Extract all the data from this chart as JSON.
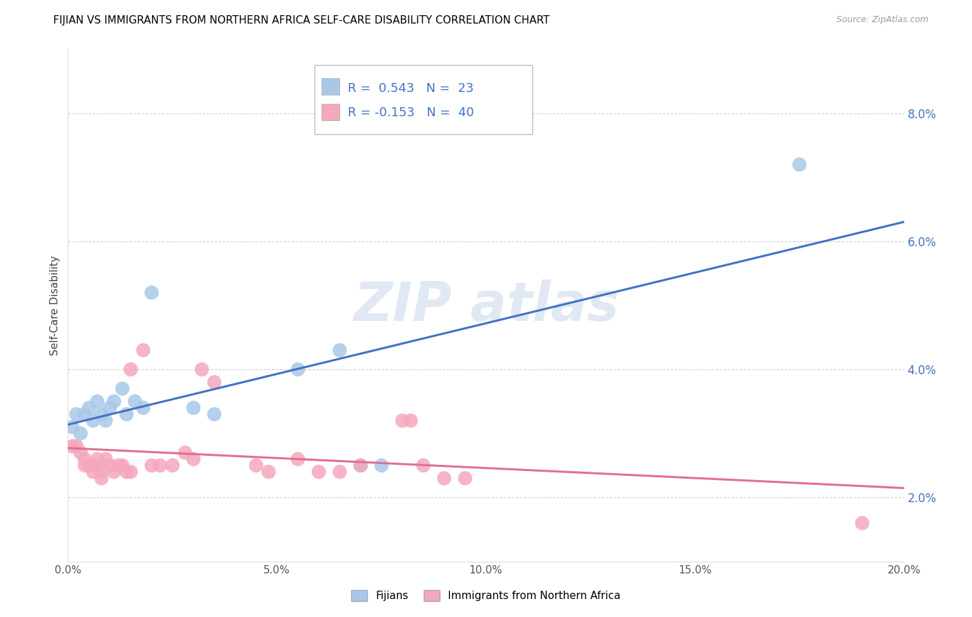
{
  "title": "FIJIAN VS IMMIGRANTS FROM NORTHERN AFRICA SELF-CARE DISABILITY CORRELATION CHART",
  "source": "Source: ZipAtlas.com",
  "ylabel": "Self-Care Disability",
  "xlim": [
    0.0,
    0.2
  ],
  "ylim": [
    0.01,
    0.09
  ],
  "yticks": [
    0.02,
    0.04,
    0.06,
    0.08
  ],
  "ytick_labels": [
    "2.0%",
    "4.0%",
    "6.0%",
    "8.0%"
  ],
  "xticks": [
    0.0,
    0.05,
    0.1,
    0.15,
    0.2
  ],
  "xtick_labels": [
    "0.0%",
    "5.0%",
    "10.0%",
    "15.0%",
    "20.0%"
  ],
  "fijian_color": "#a8c8e8",
  "immigrant_color": "#f4a8bc",
  "fijian_R": 0.543,
  "fijian_N": 23,
  "immigrant_R": -0.153,
  "immigrant_N": 40,
  "fijian_line_color": "#4472c4",
  "immigrant_line_color": "#e07090",
  "legend_label_1": "Fijians",
  "legend_label_2": "Immigrants from Northern Africa",
  "fijian_points": [
    [
      0.001,
      0.031
    ],
    [
      0.002,
      0.033
    ],
    [
      0.003,
      0.03
    ],
    [
      0.004,
      0.033
    ],
    [
      0.005,
      0.034
    ],
    [
      0.006,
      0.032
    ],
    [
      0.007,
      0.035
    ],
    [
      0.008,
      0.033
    ],
    [
      0.009,
      0.032
    ],
    [
      0.01,
      0.034
    ],
    [
      0.011,
      0.035
    ],
    [
      0.013,
      0.037
    ],
    [
      0.014,
      0.033
    ],
    [
      0.016,
      0.035
    ],
    [
      0.018,
      0.034
    ],
    [
      0.02,
      0.052
    ],
    [
      0.03,
      0.034
    ],
    [
      0.035,
      0.033
    ],
    [
      0.055,
      0.04
    ],
    [
      0.065,
      0.043
    ],
    [
      0.07,
      0.025
    ],
    [
      0.075,
      0.025
    ],
    [
      0.175,
      0.072
    ]
  ],
  "immigrant_points": [
    [
      0.001,
      0.028
    ],
    [
      0.002,
      0.028
    ],
    [
      0.003,
      0.027
    ],
    [
      0.004,
      0.026
    ],
    [
      0.004,
      0.025
    ],
    [
      0.005,
      0.025
    ],
    [
      0.006,
      0.025
    ],
    [
      0.006,
      0.024
    ],
    [
      0.007,
      0.026
    ],
    [
      0.007,
      0.025
    ],
    [
      0.008,
      0.024
    ],
    [
      0.008,
      0.023
    ],
    [
      0.009,
      0.026
    ],
    [
      0.01,
      0.025
    ],
    [
      0.011,
      0.024
    ],
    [
      0.012,
      0.025
    ],
    [
      0.013,
      0.025
    ],
    [
      0.014,
      0.024
    ],
    [
      0.015,
      0.024
    ],
    [
      0.015,
      0.04
    ],
    [
      0.018,
      0.043
    ],
    [
      0.02,
      0.025
    ],
    [
      0.022,
      0.025
    ],
    [
      0.025,
      0.025
    ],
    [
      0.028,
      0.027
    ],
    [
      0.03,
      0.026
    ],
    [
      0.032,
      0.04
    ],
    [
      0.035,
      0.038
    ],
    [
      0.045,
      0.025
    ],
    [
      0.048,
      0.024
    ],
    [
      0.055,
      0.026
    ],
    [
      0.06,
      0.024
    ],
    [
      0.065,
      0.024
    ],
    [
      0.07,
      0.025
    ],
    [
      0.08,
      0.032
    ],
    [
      0.082,
      0.032
    ],
    [
      0.085,
      0.025
    ],
    [
      0.09,
      0.023
    ],
    [
      0.095,
      0.023
    ],
    [
      0.19,
      0.016
    ]
  ]
}
